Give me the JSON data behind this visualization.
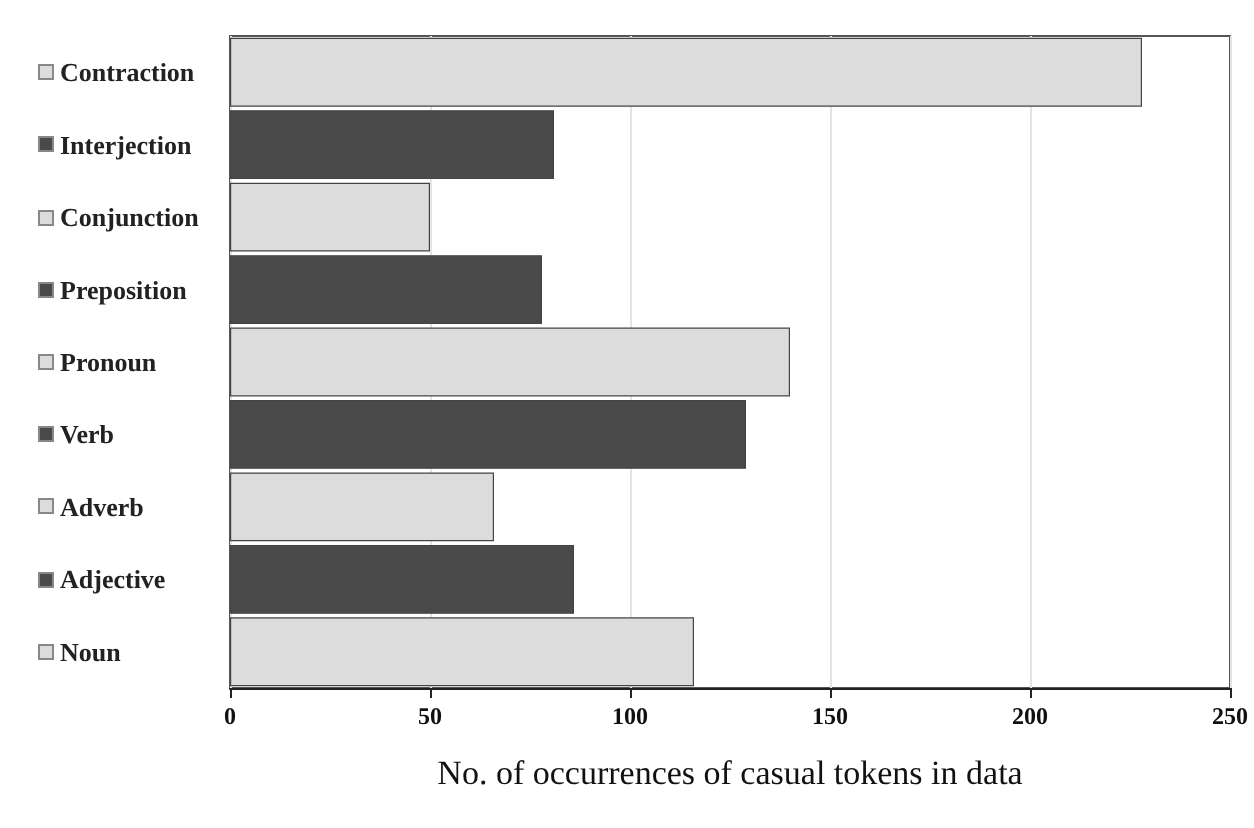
{
  "chart_data": {
    "type": "bar",
    "orientation": "horizontal",
    "xlabel": "No. of occurrences of casual tokens in data",
    "categories": [
      "Contraction",
      "Interjection",
      "Conjunction",
      "Preposition",
      "Pronoun",
      "Verb",
      "Adverb",
      "Adjective",
      "Noun"
    ],
    "values": [
      228,
      81,
      50,
      78,
      140,
      129,
      66,
      86,
      116
    ],
    "colors": [
      "#dcdcdc",
      "#4a4a4a",
      "#dcdcdc",
      "#4a4a4a",
      "#dcdcdc",
      "#4a4a4a",
      "#dcdcdc",
      "#4a4a4a",
      "#dcdcdc"
    ],
    "xlim": [
      0,
      250
    ],
    "xticks": [
      0,
      50,
      100,
      150,
      200,
      250
    ],
    "grid": "x"
  }
}
